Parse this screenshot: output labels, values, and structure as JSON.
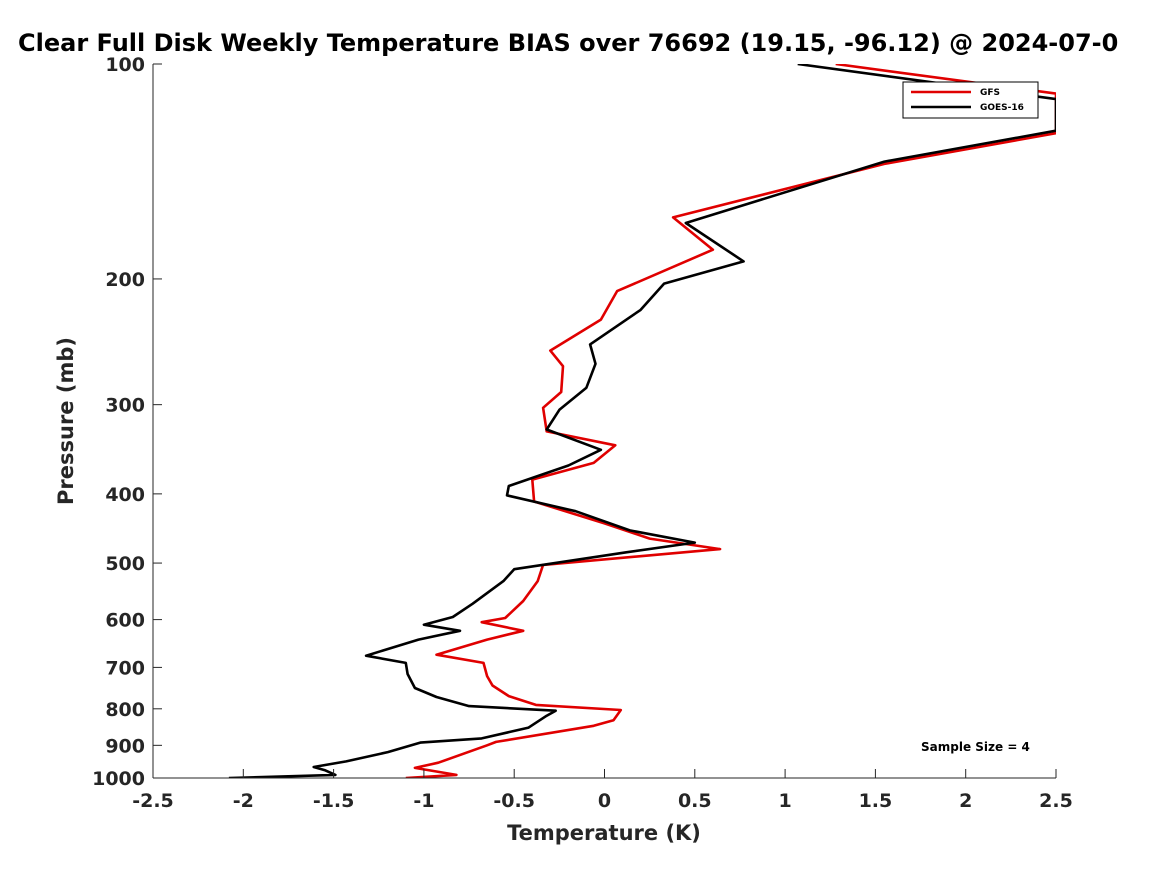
{
  "chart_data": {
    "type": "line",
    "title": "Clear Full Disk Weekly Temperature BIAS over 76692 (19.15, -96.12) @ 2024-07-0",
    "xlabel": "Temperature (K)",
    "ylabel": "Pressure (mb)",
    "xlim": [
      -2.5,
      2.5
    ],
    "ylim": [
      100,
      1000
    ],
    "yscale": "log",
    "yreversed": true,
    "xticks": [
      -2.5,
      -2,
      -1.5,
      -1,
      -0.5,
      0,
      0.5,
      1,
      1.5,
      2,
      2.5
    ],
    "xtick_labels": [
      "-2.5",
      "-2",
      "-1.5",
      "-1",
      "-0.5",
      "0",
      "0.5",
      "1",
      "1.5",
      "2",
      "2.5"
    ],
    "yticks": [
      100,
      200,
      300,
      400,
      500,
      600,
      700,
      800,
      900,
      1000
    ],
    "ytick_labels": [
      "100",
      "200",
      "300",
      "400",
      "500",
      "600",
      "700",
      "800",
      "900",
      "1000"
    ],
    "legend_position": "top-right",
    "annotation": "Sample Size = 4",
    "series": [
      {
        "name": "GFS",
        "color": "#e00000",
        "points": [
          [
            1.28,
            100
          ],
          [
            2.5,
            110
          ],
          [
            2.5,
            125
          ],
          [
            1.55,
            138
          ],
          [
            0.38,
            164
          ],
          [
            0.6,
            182
          ],
          [
            0.07,
            208
          ],
          [
            -0.02,
            228
          ],
          [
            -0.3,
            252
          ],
          [
            -0.23,
            265
          ],
          [
            -0.24,
            288
          ],
          [
            -0.34,
            303
          ],
          [
            -0.32,
            327
          ],
          [
            0.06,
            342
          ],
          [
            -0.06,
            362
          ],
          [
            -0.4,
            382
          ],
          [
            -0.39,
            410
          ],
          [
            0.0,
            440
          ],
          [
            0.25,
            462
          ],
          [
            0.64,
            478
          ],
          [
            0.2,
            489
          ],
          [
            -0.34,
            503
          ],
          [
            -0.37,
            530
          ],
          [
            -0.45,
            565
          ],
          [
            -0.55,
            597
          ],
          [
            -0.68,
            605
          ],
          [
            -0.45,
            622
          ],
          [
            -0.65,
            640
          ],
          [
            -0.93,
            672
          ],
          [
            -0.67,
            690
          ],
          [
            -0.65,
            720
          ],
          [
            -0.62,
            742
          ],
          [
            -0.53,
            768
          ],
          [
            -0.38,
            790
          ],
          [
            0.09,
            803
          ],
          [
            0.05,
            830
          ],
          [
            -0.06,
            845
          ],
          [
            -0.6,
            890
          ],
          [
            -0.65,
            900
          ],
          [
            -0.92,
            952
          ],
          [
            -1.05,
            968
          ],
          [
            -0.82,
            990
          ],
          [
            -1.1,
            1000
          ]
        ]
      },
      {
        "name": "GOES-16",
        "color": "#000000",
        "points": [
          [
            1.07,
            100
          ],
          [
            2.5,
            112
          ],
          [
            2.5,
            124
          ],
          [
            1.55,
            137
          ],
          [
            0.45,
            167
          ],
          [
            0.77,
            189
          ],
          [
            0.33,
            203
          ],
          [
            0.2,
            221
          ],
          [
            -0.08,
            247
          ],
          [
            -0.05,
            263
          ],
          [
            -0.1,
            284
          ],
          [
            -0.25,
            305
          ],
          [
            -0.32,
            325
          ],
          [
            -0.02,
            347
          ],
          [
            -0.2,
            365
          ],
          [
            -0.53,
            390
          ],
          [
            -0.54,
            402
          ],
          [
            -0.16,
            423
          ],
          [
            0.14,
            450
          ],
          [
            0.5,
            468
          ],
          [
            0.12,
            483
          ],
          [
            -0.5,
            510
          ],
          [
            -0.56,
            530
          ],
          [
            -0.73,
            570
          ],
          [
            -0.84,
            595
          ],
          [
            -1.0,
            610
          ],
          [
            -0.8,
            622
          ],
          [
            -1.03,
            640
          ],
          [
            -1.32,
            674
          ],
          [
            -1.1,
            690
          ],
          [
            -1.09,
            715
          ],
          [
            -1.05,
            748
          ],
          [
            -0.93,
            770
          ],
          [
            -0.75,
            793
          ],
          [
            -0.27,
            805
          ],
          [
            -0.32,
            818
          ],
          [
            -0.42,
            850
          ],
          [
            -0.68,
            880
          ],
          [
            -1.02,
            892
          ],
          [
            -1.2,
            920
          ],
          [
            -1.43,
            948
          ],
          [
            -1.61,
            965
          ],
          [
            -1.55,
            975
          ],
          [
            -1.49,
            990
          ],
          [
            -2.08,
            1000
          ]
        ]
      }
    ]
  }
}
